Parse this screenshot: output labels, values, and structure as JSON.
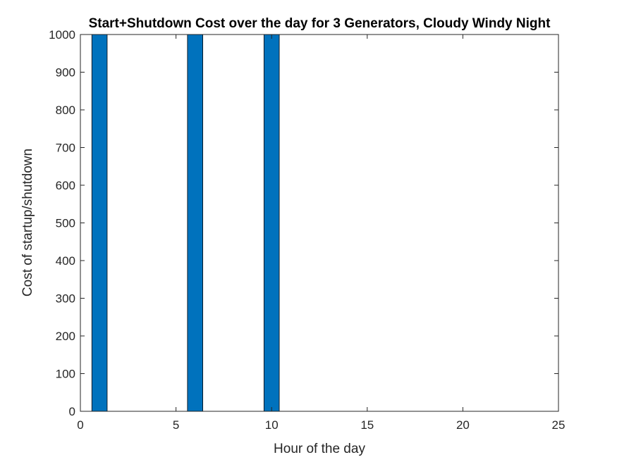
{
  "chart_data": {
    "type": "bar",
    "title": "Start+Shutdown Cost over the day for 3 Generators, Cloudy Windy Night",
    "xlabel": "Hour of the day",
    "ylabel": "Cost of startup/shutdown",
    "xlim": [
      0,
      25
    ],
    "ylim": [
      0,
      1000
    ],
    "xticks": [
      0,
      5,
      10,
      15,
      20,
      25
    ],
    "yticks": [
      0,
      100,
      200,
      300,
      400,
      500,
      600,
      700,
      800,
      900,
      1000
    ],
    "bar_width": 0.8,
    "x": [
      1,
      6,
      10
    ],
    "values": [
      1000,
      1000,
      1000
    ],
    "bar_color": "#0072BD",
    "grid": false
  }
}
